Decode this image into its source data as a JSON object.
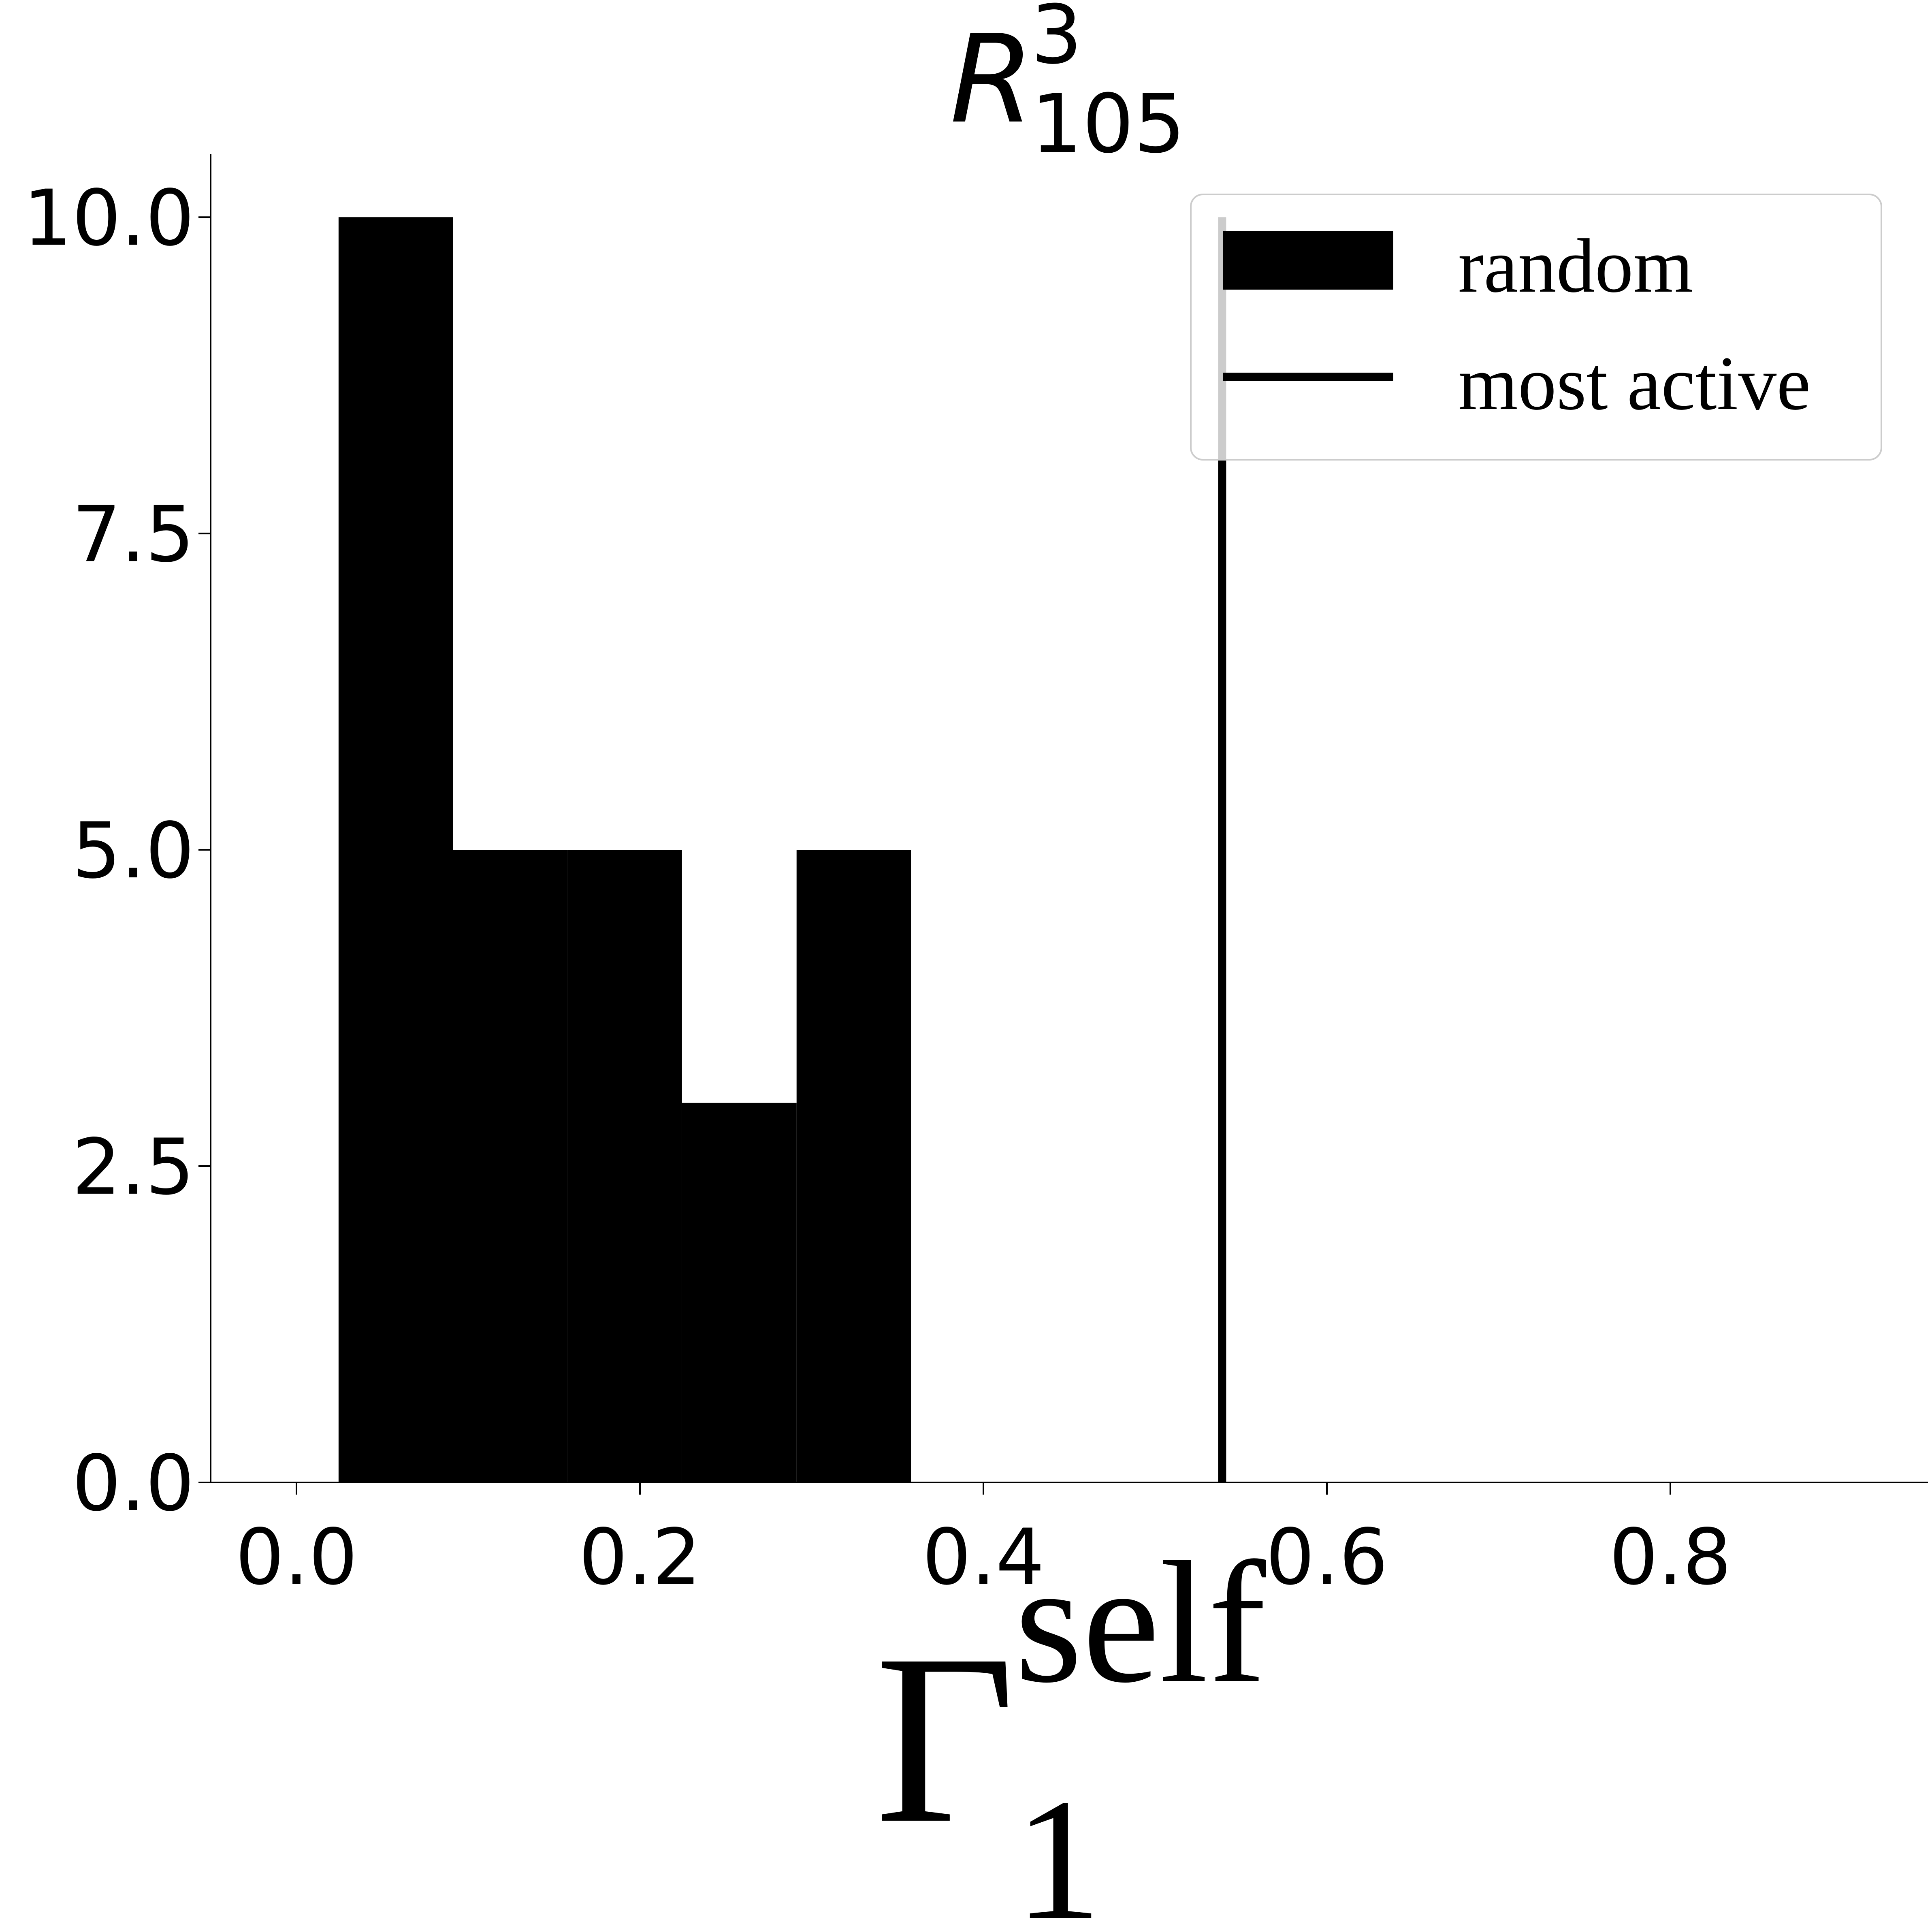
{
  "chart_data": {
    "type": "bar",
    "title": {
      "main": "R",
      "superscript": "3",
      "subscript": "105"
    },
    "xlabel": {
      "main": "Γ",
      "superscript": "self",
      "subscript": "1"
    },
    "ylabel": "",
    "xlim": [
      -0.05,
      0.95
    ],
    "ylim": [
      0,
      10.5
    ],
    "x_ticks": [
      "0.0",
      "0.2",
      "0.4",
      "0.6",
      "0.8"
    ],
    "y_ticks": [
      "0.0",
      "2.5",
      "5.0",
      "7.5",
      "10.0"
    ],
    "grid": false,
    "legend_position": "top-right",
    "series": [
      {
        "name": "random",
        "kind": "histogram",
        "bin_edges": [
          0.0245,
          0.0912,
          0.1578,
          0.2245,
          0.2912,
          0.3578
        ],
        "counts": [
          10,
          5,
          5,
          3,
          5
        ],
        "color": "#000000"
      },
      {
        "name": "most active",
        "kind": "vline",
        "x": 0.539,
        "y_range": [
          0,
          10
        ],
        "color": "#000000"
      }
    ]
  }
}
